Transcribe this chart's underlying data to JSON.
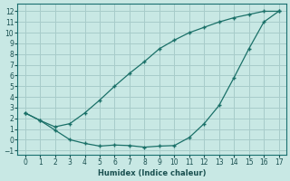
{
  "xlabel": "Humidex (Indice chaleur)",
  "background_color": "#c8e8e4",
  "grid_color": "#a8ccca",
  "line_color": "#1a7068",
  "xlim": [
    -0.5,
    17.5
  ],
  "ylim": [
    -1.4,
    12.7
  ],
  "xticks": [
    0,
    1,
    2,
    3,
    4,
    5,
    6,
    7,
    8,
    9,
    10,
    11,
    12,
    13,
    14,
    15,
    16,
    17
  ],
  "yticks": [
    -1,
    0,
    1,
    2,
    3,
    4,
    5,
    6,
    7,
    8,
    9,
    10,
    11,
    12
  ],
  "upper_x": [
    0,
    1,
    2,
    3,
    4,
    5,
    6,
    7,
    8,
    9,
    10,
    11,
    12,
    13,
    14,
    15,
    16,
    17
  ],
  "upper_y": [
    2.5,
    1.8,
    1.2,
    1.5,
    2.5,
    3.7,
    5.0,
    6.2,
    7.3,
    8.5,
    9.3,
    10.0,
    10.5,
    11.0,
    11.4,
    11.7,
    12.0,
    12.0
  ],
  "lower_x": [
    0,
    1,
    2,
    3,
    4,
    5,
    6,
    7,
    8,
    9,
    10,
    11,
    12,
    13,
    14,
    15,
    16,
    17
  ],
  "lower_y": [
    2.5,
    1.8,
    0.9,
    0.0,
    -0.35,
    -0.6,
    -0.5,
    -0.55,
    -0.7,
    -0.6,
    -0.55,
    0.2,
    1.5,
    3.2,
    5.8,
    8.5,
    11.0,
    12.0
  ]
}
